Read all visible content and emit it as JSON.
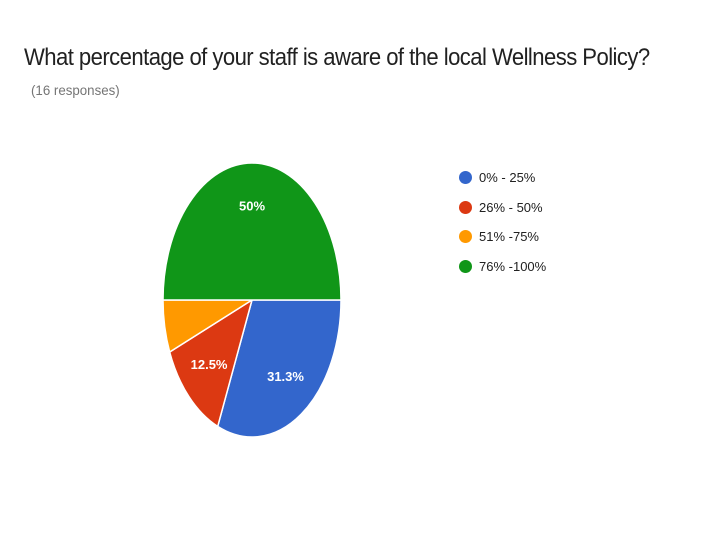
{
  "header": {
    "title": "What percentage of your staff is aware of the local Wellness Policy?",
    "responses": "(16 responses)"
  },
  "chart_data": {
    "type": "pie",
    "title": "What percentage of your staff is aware of the local Wellness Policy?",
    "subtitle": "(16 responses)",
    "categories": [
      "0% - 25%",
      "26% - 50%",
      "51% -75%",
      "76% -100%"
    ],
    "values": [
      31.3,
      12.5,
      6.2,
      50
    ],
    "data_labels": [
      "31.3%",
      "12.5%",
      "",
      "50%"
    ],
    "colors": [
      "#3366cc",
      "#dc3912",
      "#ff9900",
      "#109618"
    ],
    "legend_position": "right"
  }
}
